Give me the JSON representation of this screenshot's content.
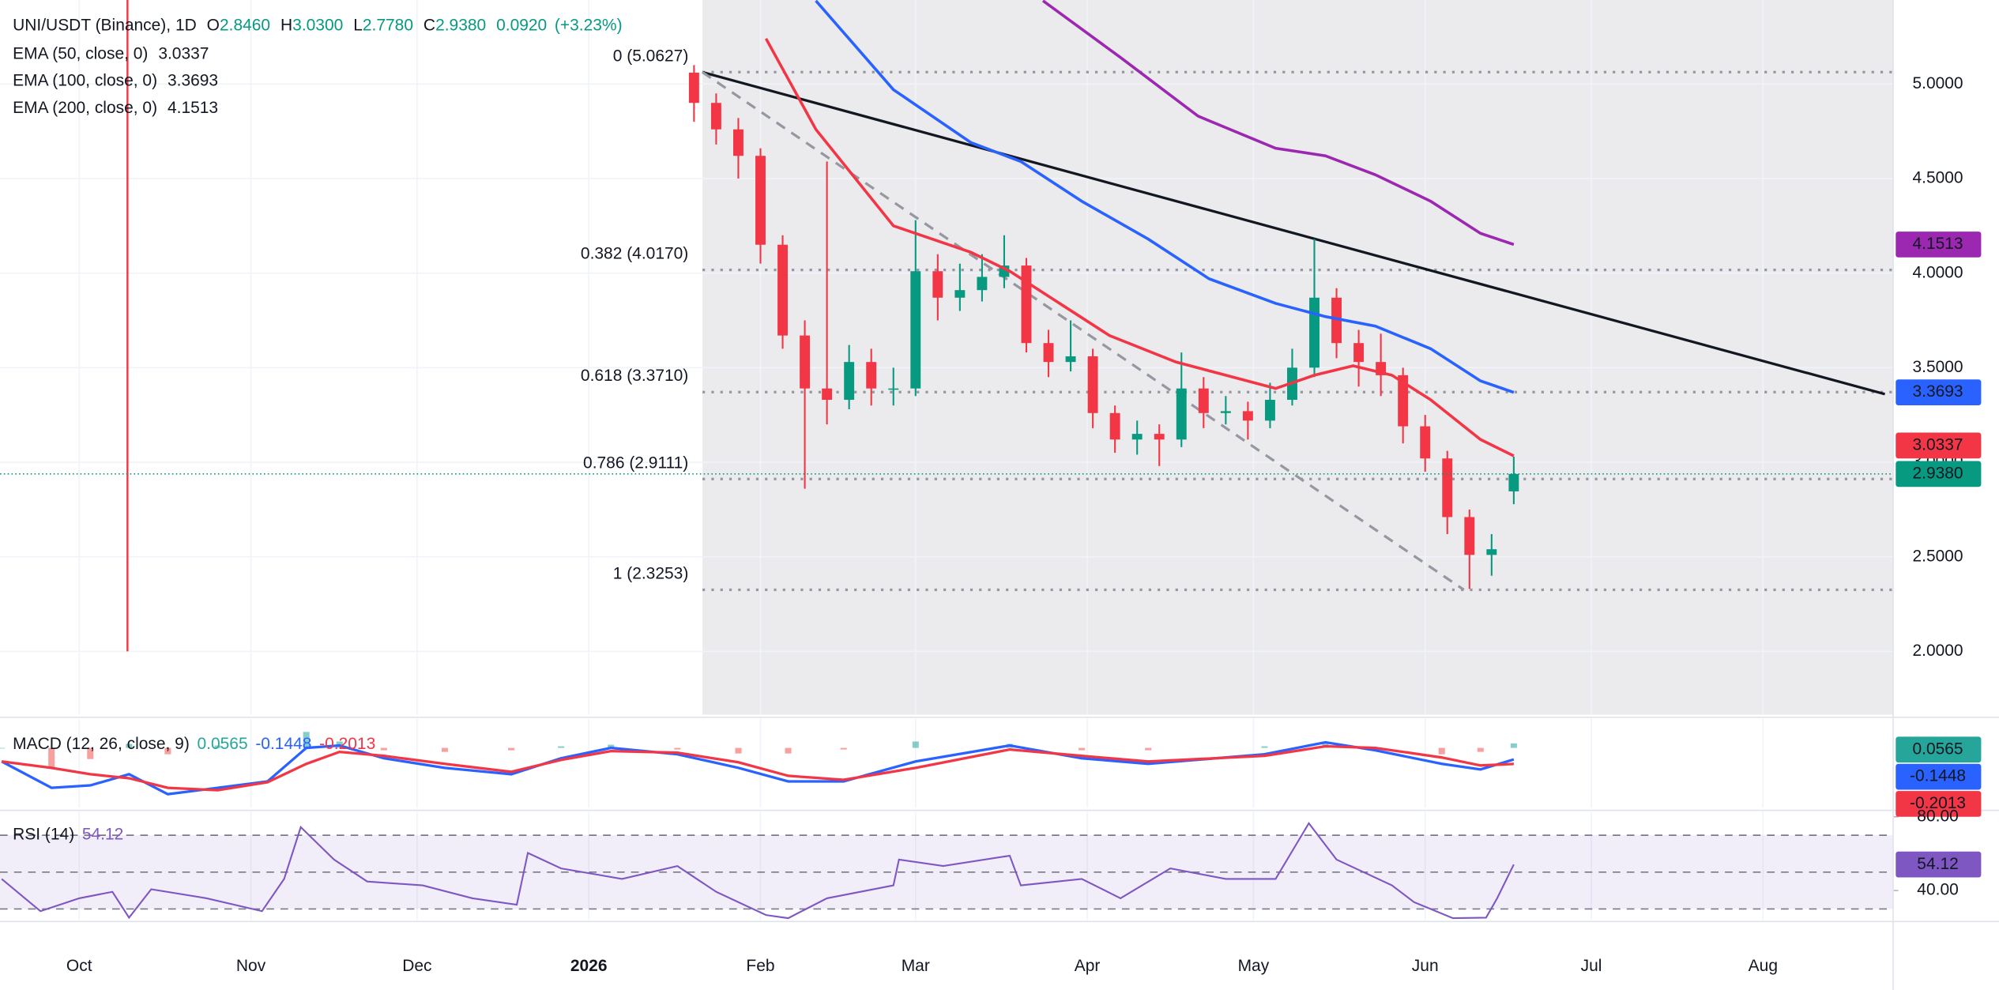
{
  "chart_data": [
    {
      "type": "candlestick",
      "title": "UNI/USDT (Binance), 1D",
      "ohlc_labels": [
        {
          "key": "O",
          "label": "2.8460"
        },
        {
          "key": "H",
          "label": "3.0300"
        },
        {
          "key": "L",
          "label": "2.7780"
        },
        {
          "key": "C",
          "label": "2.9380"
        }
      ],
      "change_label": "0.0920",
      "change_pct_label": "(+3.23%)",
      "x": [
        111,
        115,
        119,
        123,
        127,
        131,
        135,
        139,
        143,
        147,
        151,
        155,
        159,
        163,
        167,
        171,
        175,
        179,
        183,
        187,
        191,
        195,
        199,
        203,
        207,
        211,
        215,
        219,
        223,
        227,
        231,
        235,
        239,
        243,
        247,
        251,
        255,
        259
      ],
      "open": [
        5.06,
        4.9,
        4.76,
        4.62,
        4.15,
        3.67,
        3.39,
        3.33,
        3.53,
        3.39,
        3.39,
        4.01,
        3.87,
        3.91,
        3.98,
        4.04,
        3.63,
        3.53,
        3.56,
        3.26,
        3.12,
        3.15,
        3.12,
        3.39,
        3.26,
        3.27,
        3.22,
        3.33,
        3.5,
        3.87,
        3.63,
        3.53,
        3.46,
        3.19,
        3.02,
        2.71,
        2.51,
        2.846
      ],
      "high": [
        5.1,
        4.95,
        4.82,
        4.66,
        4.2,
        3.75,
        4.59,
        3.62,
        3.6,
        3.5,
        4.28,
        4.1,
        4.05,
        4.1,
        4.2,
        4.08,
        3.7,
        3.75,
        3.6,
        3.3,
        3.22,
        3.2,
        3.58,
        3.45,
        3.35,
        3.32,
        3.42,
        3.6,
        4.18,
        3.92,
        3.7,
        3.68,
        3.5,
        3.25,
        3.06,
        2.75,
        2.62,
        3.03
      ],
      "low": [
        4.8,
        4.68,
        4.5,
        4.05,
        3.6,
        2.86,
        3.2,
        3.28,
        3.3,
        3.3,
        3.35,
        3.75,
        3.8,
        3.85,
        3.92,
        3.58,
        3.45,
        3.48,
        3.18,
        3.05,
        3.04,
        2.98,
        3.08,
        3.18,
        3.2,
        3.12,
        3.18,
        3.3,
        3.45,
        3.55,
        3.4,
        3.35,
        3.1,
        2.95,
        2.62,
        2.33,
        2.4,
        2.778
      ],
      "close": [
        4.9,
        4.76,
        4.62,
        4.15,
        3.67,
        3.39,
        3.33,
        3.53,
        3.39,
        3.39,
        4.01,
        3.87,
        3.91,
        3.98,
        4.04,
        3.63,
        3.53,
        3.56,
        3.26,
        3.12,
        3.15,
        3.12,
        3.39,
        3.26,
        3.27,
        3.22,
        3.33,
        3.5,
        3.87,
        3.63,
        3.53,
        3.46,
        3.19,
        3.02,
        2.71,
        2.51,
        2.54,
        2.938
      ],
      "up_color": "#089981",
      "down_color": "#f23645",
      "series": [
        {
          "name": "EMA (50, close, 0)",
          "color": "#f23645",
          "x": [
            124,
            133,
            147,
            161,
            168,
            177,
            186,
            198,
            207,
            216,
            223,
            230,
            237,
            244,
            253,
            259
          ],
          "values": [
            5.24,
            4.76,
            4.25,
            4.11,
            4.01,
            3.84,
            3.67,
            3.53,
            3.46,
            3.39,
            3.46,
            3.51,
            3.46,
            3.33,
            3.12,
            3.0337
          ]
        },
        {
          "name": "EMA (100, close, 0)",
          "color": "#2962ff",
          "x": [
            133,
            147,
            161,
            170,
            181,
            193,
            204,
            216,
            225,
            234,
            244,
            253,
            259
          ],
          "values": [
            5.44,
            4.97,
            4.69,
            4.59,
            4.38,
            4.18,
            3.97,
            3.84,
            3.77,
            3.72,
            3.6,
            3.43,
            3.3693
          ]
        },
        {
          "name": "EMA (200, close, 0)",
          "color": "#9c27b0",
          "x": [
            174,
            188,
            202,
            216,
            225,
            234,
            244,
            253,
            259
          ],
          "values": [
            5.44,
            5.14,
            4.83,
            4.66,
            4.62,
            4.52,
            4.38,
            4.21,
            4.1513
          ]
        }
      ],
      "last_price": {
        "value": 2.938,
        "label": "2.9380",
        "color": "#089981"
      },
      "fib_levels": [
        {
          "value": 5.0627,
          "label": "0 (5.0627)"
        },
        {
          "value": 4.017,
          "label": "0.382 (4.0170)"
        },
        {
          "value": 3.371,
          "label": "0.618 (3.3710)"
        },
        {
          "value": 2.9111,
          "label": "0.786 (2.9111)"
        },
        {
          "value": 2.3253,
          "label": "1 (2.3253)"
        }
      ],
      "trendlines": [
        {
          "x": [
            112.5,
            326
          ],
          "y": [
            5.0627,
            3.36
          ],
          "color": "#131722",
          "style": "solid"
        },
        {
          "x": [
            112.5,
            250
          ],
          "y": [
            5.0627,
            2.3253
          ],
          "color": "#9598a1",
          "style": "dashed"
        }
      ],
      "xlim": [
        -14.3,
        327.5
      ],
      "ylim": [
        1.665,
        5.444
      ],
      "yticks": [
        {
          "value": 5,
          "label": "5.0000"
        },
        {
          "value": 4.5,
          "label": "4.5000"
        },
        {
          "value": 4,
          "label": "4.0000"
        },
        {
          "value": 3.5,
          "label": "3.5000"
        },
        {
          "value": 3,
          "label": "3.0000"
        },
        {
          "value": 2.5,
          "label": "2.5000"
        },
        {
          "value": 2,
          "label": "2.0000"
        }
      ],
      "grid": true
    },
    {
      "type": "macd",
      "title": "MACD (12, 26, close, 9)",
      "xlim": [
        -14.3,
        327.5
      ],
      "ylim": [
        -0.75,
        0.367
      ],
      "series": [
        {
          "kind": "histogram",
          "up_color": "#26a69a",
          "down_color": "#ef5350",
          "x": [
            -14,
            -5,
            2,
            9,
            16,
            25,
            34,
            41,
            47,
            55,
            66,
            78,
            87,
            96,
            108,
            119,
            128,
            138,
            151,
            168,
            181,
            193,
            214,
            225,
            234,
            246,
            253,
            259
          ],
          "values": [
            0,
            -0.25,
            -0.14,
            0.05,
            -0.08,
            0.03,
            0.01,
            0.2,
            0.08,
            -0.03,
            -0.05,
            -0.03,
            0.02,
            0.04,
            -0.02,
            -0.07,
            -0.07,
            -0.02,
            0.08,
            0.05,
            -0.03,
            -0.03,
            0.02,
            0.05,
            -0.03,
            -0.08,
            -0.05,
            0.0565
          ]
        },
        {
          "kind": "line",
          "color": "#2962ff",
          "x": [
            -14,
            -5,
            2,
            9,
            16,
            25,
            34,
            41,
            47,
            55,
            66,
            78,
            87,
            96,
            108,
            119,
            128,
            138,
            151,
            168,
            181,
            193,
            214,
            225,
            234,
            246,
            253,
            259
          ],
          "values": [
            -0.17,
            -0.5,
            -0.47,
            -0.33,
            -0.58,
            -0.5,
            -0.42,
            0,
            0.03,
            -0.13,
            -0.25,
            -0.33,
            -0.13,
            0,
            -0.08,
            -0.25,
            -0.42,
            -0.42,
            -0.17,
            0.03,
            -0.13,
            -0.2,
            -0.08,
            0.07,
            -0.03,
            -0.2,
            -0.27,
            -0.1448
          ]
        },
        {
          "kind": "line",
          "color": "#f23645",
          "x": [
            -14,
            -5,
            2,
            9,
            16,
            25,
            34,
            41,
            47,
            55,
            66,
            78,
            87,
            96,
            108,
            119,
            128,
            138,
            151,
            168,
            181,
            193,
            214,
            225,
            234,
            246,
            253,
            259
          ],
          "values": [
            -0.17,
            -0.25,
            -0.33,
            -0.38,
            -0.5,
            -0.53,
            -0.43,
            -0.2,
            -0.05,
            -0.1,
            -0.2,
            -0.3,
            -0.15,
            -0.04,
            -0.06,
            -0.18,
            -0.35,
            -0.4,
            -0.25,
            -0.02,
            -0.1,
            -0.17,
            -0.1,
            0.02,
            0,
            -0.12,
            -0.22,
            -0.2013
          ]
        }
      ]
    },
    {
      "type": "line",
      "title": "RSI (14)",
      "xlim": [
        -14.3,
        327.5
      ],
      "ylim": [
        23.9,
        82.8
      ],
      "yticks": [
        {
          "value": 80,
          "label": "80.00"
        },
        {
          "value": 40,
          "label": "40.00"
        }
      ],
      "levels": [
        70,
        50,
        30
      ],
      "series": [
        {
          "color": "#7e57c2",
          "x": [
            -14,
            -7,
            0,
            6,
            9,
            13,
            23,
            33,
            37,
            40,
            46,
            52,
            62,
            71,
            79,
            81,
            87,
            98,
            108,
            115,
            124,
            128,
            135,
            147,
            148,
            156,
            168,
            170,
            181,
            188,
            197,
            207,
            216,
            222,
            227,
            237,
            241,
            248,
            254,
            256,
            259
          ],
          "values": [
            46.3,
            28.8,
            35.8,
            39.3,
            25.3,
            40.7,
            35.8,
            28.8,
            46.3,
            74.4,
            56.8,
            44.9,
            42.8,
            35.8,
            32.3,
            60.4,
            52,
            46.3,
            53.3,
            39.3,
            26.7,
            25,
            35.8,
            42.8,
            56.8,
            53.3,
            58.9,
            42.8,
            46.3,
            35.8,
            52,
            46.3,
            46.3,
            76.5,
            56.8,
            42.8,
            33.7,
            25,
            25.3,
            35.8,
            54.12
          ]
        }
      ],
      "xticks": [
        {
          "value": 0,
          "label": "Oct"
        },
        {
          "value": 31,
          "label": "Nov"
        },
        {
          "value": 61,
          "label": "Dec"
        },
        {
          "value": 92,
          "label": "2026",
          "bold": true
        },
        {
          "value": 123,
          "label": "Feb"
        },
        {
          "value": 151,
          "label": "Mar"
        },
        {
          "value": 182,
          "label": "Apr"
        },
        {
          "value": 212,
          "label": "May"
        },
        {
          "value": 243,
          "label": "Jun"
        },
        {
          "value": 273,
          "label": "Jul"
        },
        {
          "value": 304,
          "label": "Aug"
        }
      ]
    }
  ]
}
